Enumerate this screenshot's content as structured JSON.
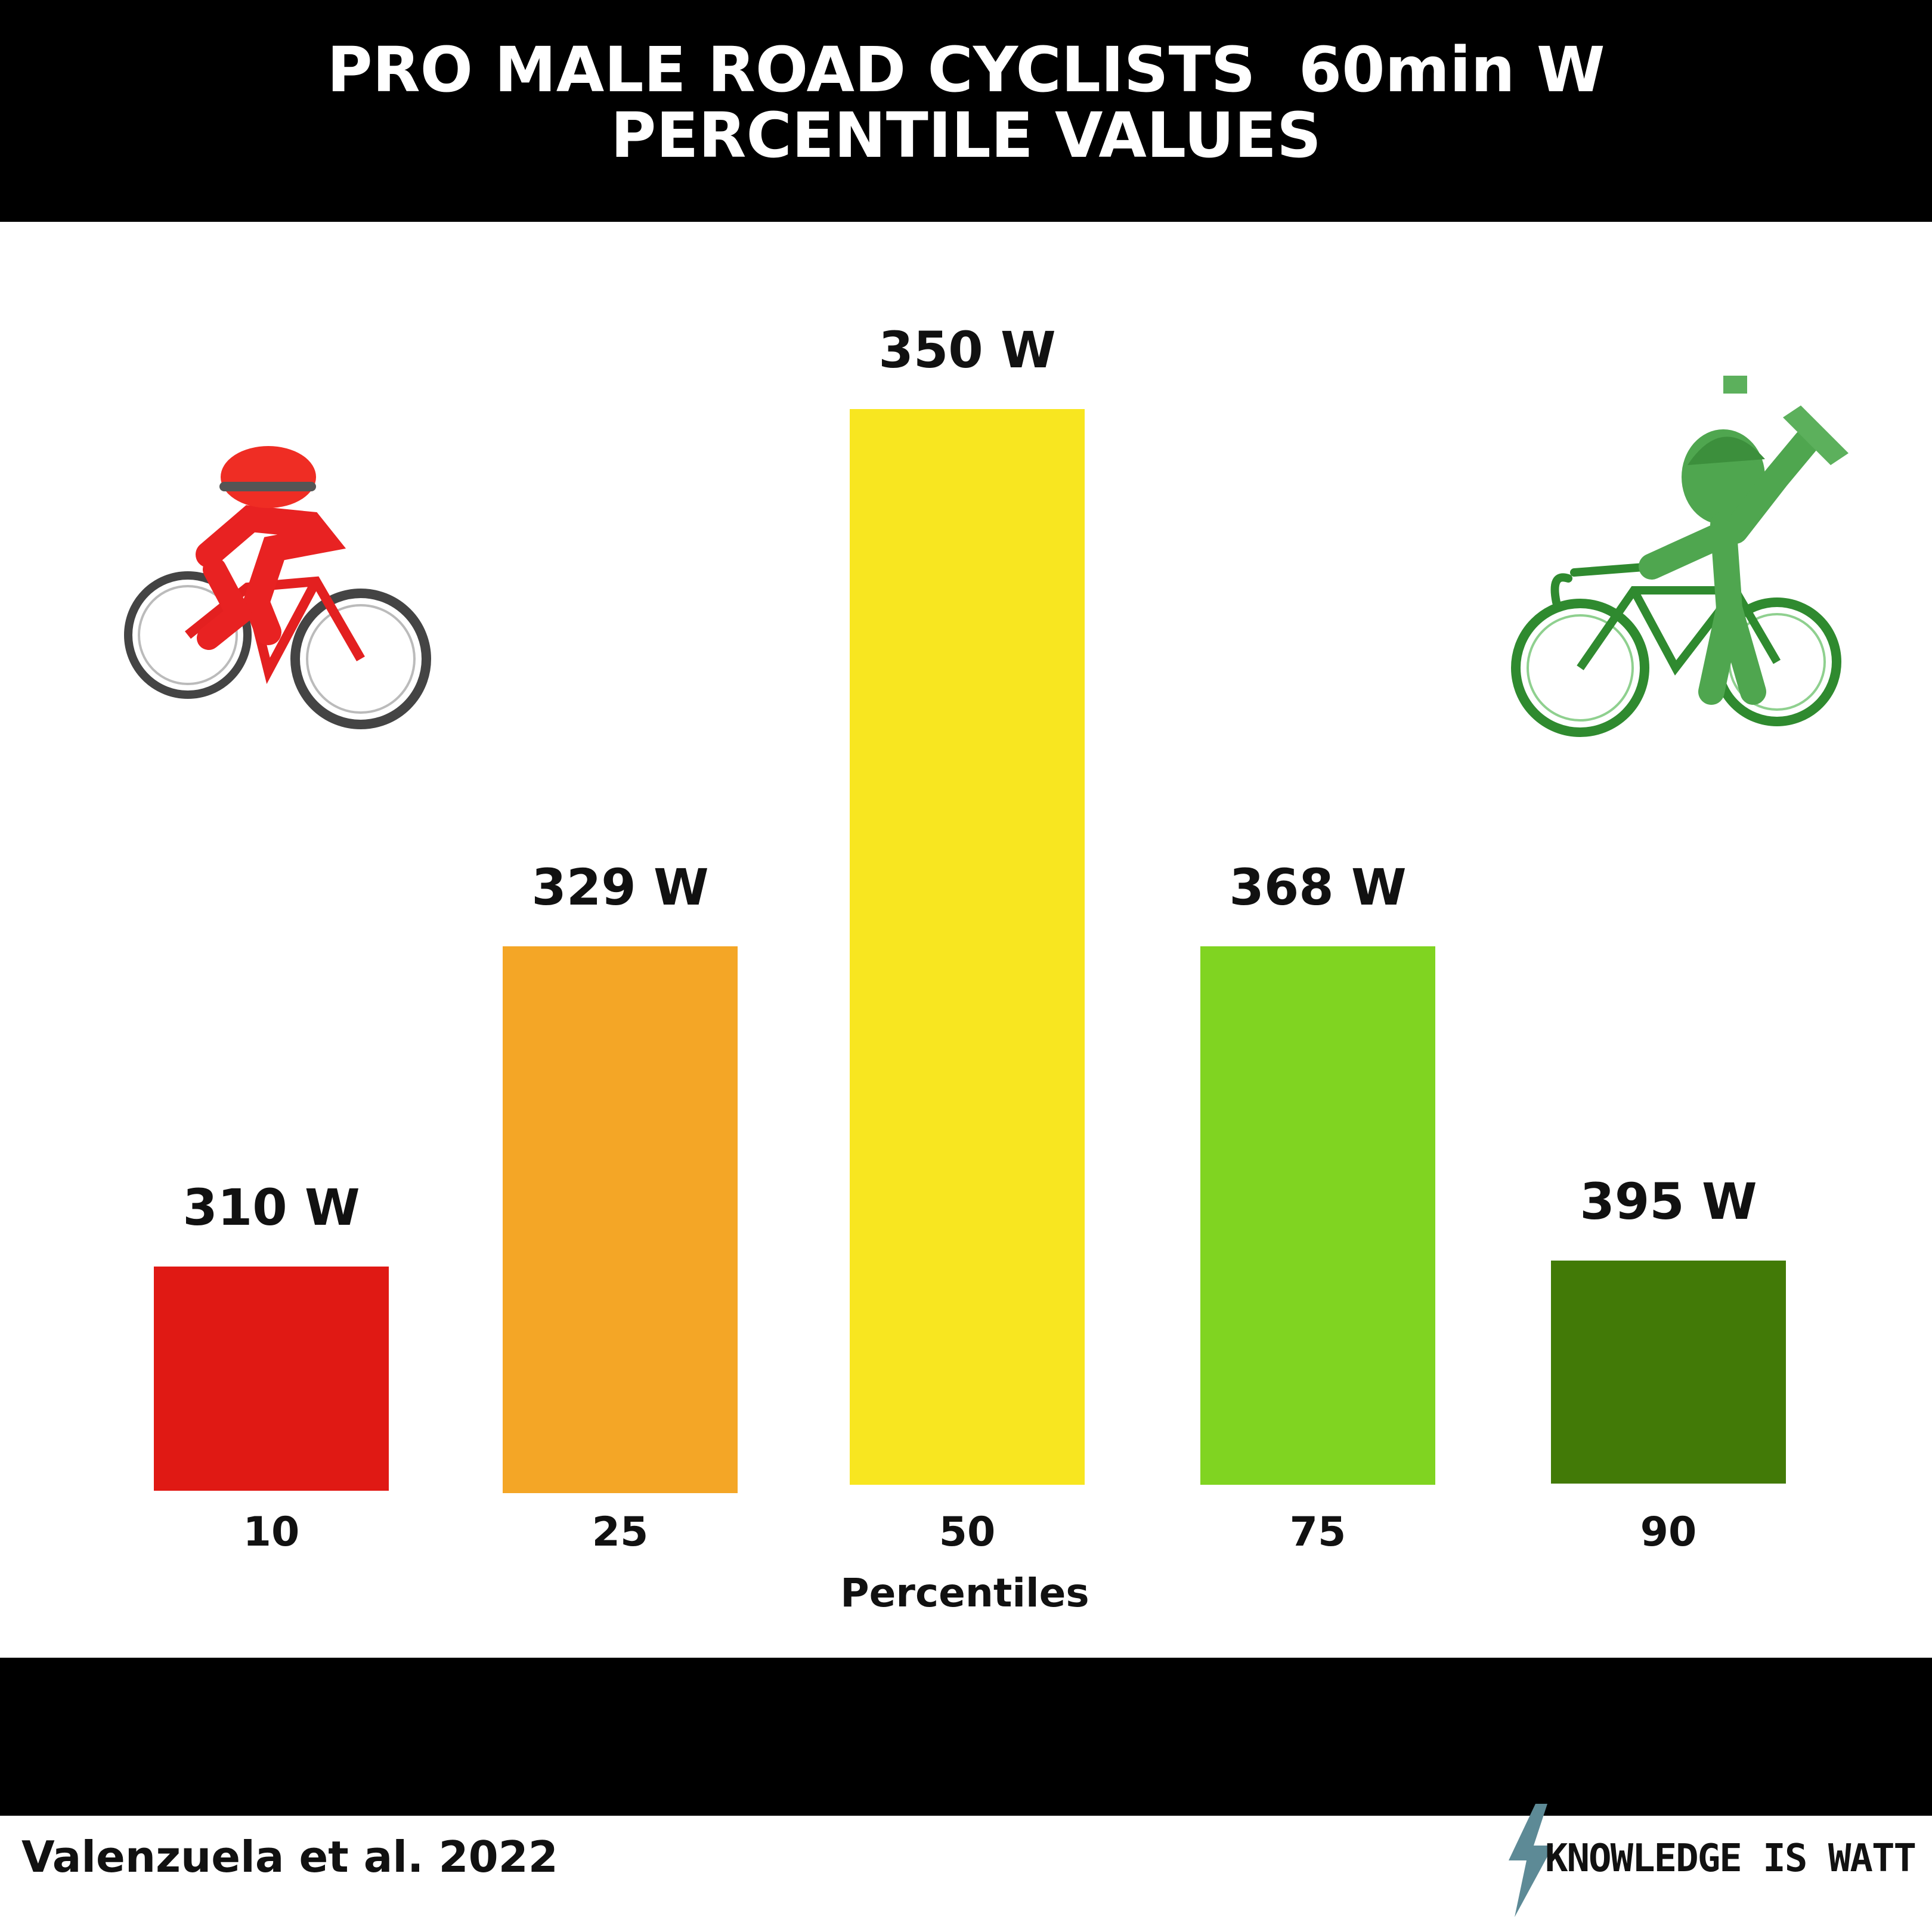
{
  "title_lines": [
    "PRO MALE ROAD CYCLISTS  60min W",
    "PERCENTILE VALUES"
  ],
  "footer": {
    "source": "Valenzuela et al. 2022",
    "brand": "KNOWLEDGE IS WATT",
    "brand_icon": "lightning-bolt-icon"
  },
  "illustrations": {
    "left": "red-cyclist-icon",
    "right": "green-cyclist-trophy-icon"
  },
  "chart_data": {
    "type": "bar",
    "title": "PRO MALE ROAD CYCLISTS  60min W PERCENTILE VALUES",
    "xlabel": "Percentiles",
    "ylabel": "",
    "categories": [
      "10",
      "25",
      "50",
      "75",
      "90"
    ],
    "values": [
      310,
      329,
      350,
      368,
      395
    ],
    "value_labels": [
      "310 W",
      "329 W",
      "350 W",
      "368 W",
      "395 W"
    ],
    "colors": [
      "#e01914",
      "#f4a626",
      "#f8e620",
      "#80d421",
      "#427a07"
    ],
    "grid": false,
    "legend": "none"
  }
}
